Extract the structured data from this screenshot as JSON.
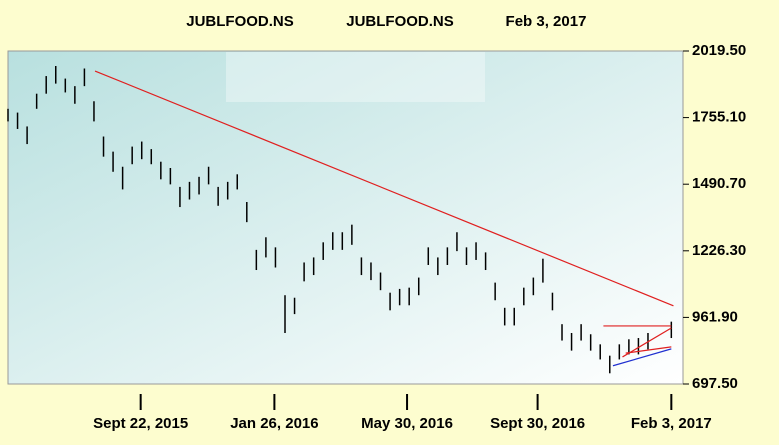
{
  "chart_data": {
    "type": "ohlc",
    "title": "JUBLFOOD.NS",
    "subtitle": "JUBLFOOD.NS",
    "date": "Feb 3, 2017",
    "color": "#000000",
    "x": [
      "2015-05-20",
      "2015-05-29",
      "2015-06-07",
      "2015-06-16",
      "2015-06-25",
      "2015-07-04",
      "2015-07-13",
      "2015-07-22",
      "2015-07-31",
      "2015-08-09",
      "2015-08-18",
      "2015-08-27",
      "2015-09-05",
      "2015-09-14",
      "2015-09-23",
      "2015-10-02",
      "2015-10-11",
      "2015-10-20",
      "2015-10-29",
      "2015-11-07",
      "2015-11-16",
      "2015-11-25",
      "2015-12-04",
      "2015-12-13",
      "2015-12-22",
      "2015-12-31",
      "2016-01-09",
      "2016-01-18",
      "2016-01-27",
      "2016-02-05",
      "2016-02-14",
      "2016-02-23",
      "2016-03-03",
      "2016-03-12",
      "2016-03-21",
      "2016-03-30",
      "2016-04-08",
      "2016-04-17",
      "2016-04-26",
      "2016-05-05",
      "2016-05-14",
      "2016-05-23",
      "2016-06-01",
      "2016-06-10",
      "2016-06-19",
      "2016-06-28",
      "2016-07-07",
      "2016-07-16",
      "2016-07-25",
      "2016-08-03",
      "2016-08-12",
      "2016-08-21",
      "2016-08-30",
      "2016-09-08",
      "2016-09-17",
      "2016-09-26",
      "2016-10-05",
      "2016-10-14",
      "2016-10-23",
      "2016-11-01",
      "2016-11-10",
      "2016-11-19",
      "2016-11-28",
      "2016-12-07",
      "2016-12-16",
      "2016-12-25",
      "2017-01-03",
      "2017-01-12",
      "2017-02-03"
    ],
    "high": [
      1790,
      1775,
      1720,
      1850,
      1920,
      1960,
      1910,
      1880,
      1950,
      1820,
      1680,
      1620,
      1560,
      1640,
      1660,
      1630,
      1580,
      1555,
      1480,
      1500,
      1520,
      1560,
      1480,
      1500,
      1530,
      1420,
      1230,
      1280,
      1240,
      1050,
      1040,
      1180,
      1200,
      1260,
      1300,
      1300,
      1330,
      1200,
      1180,
      1140,
      1060,
      1075,
      1080,
      1120,
      1240,
      1200,
      1240,
      1300,
      1240,
      1260,
      1220,
      1100,
      1000,
      1000,
      1080,
      1120,
      1195,
      1060,
      935,
      900,
      935,
      895,
      855,
      810,
      855,
      875,
      880,
      900,
      945
    ],
    "low": [
      1740,
      1710,
      1650,
      1790,
      1850,
      1890,
      1855,
      1810,
      1880,
      1740,
      1600,
      1540,
      1470,
      1570,
      1590,
      1570,
      1510,
      1490,
      1400,
      1430,
      1450,
      1490,
      1405,
      1430,
      1470,
      1340,
      1150,
      1200,
      1160,
      900,
      975,
      1105,
      1130,
      1190,
      1230,
      1230,
      1250,
      1130,
      1110,
      1070,
      990,
      1010,
      1010,
      1050,
      1170,
      1130,
      1170,
      1225,
      1170,
      1190,
      1150,
      1030,
      930,
      930,
      1010,
      1050,
      1100,
      990,
      870,
      830,
      870,
      830,
      795,
      740,
      795,
      815,
      815,
      835,
      880
    ],
    "trendlines": [
      {
        "color": "#e02020",
        "x": [
          "2015-08-10",
          "2017-02-05"
        ],
        "values": [
          1940,
          1008
        ]
      },
      {
        "color": "#e02020",
        "x": [
          "2016-12-01",
          "2017-02-03"
        ],
        "values": [
          928,
          928
        ]
      },
      {
        "color": "#e02020",
        "x": [
          "2016-12-19",
          "2017-02-03"
        ],
        "values": [
          805,
          920
        ]
      },
      {
        "color": "#e02020",
        "x": [
          "2016-12-22",
          "2017-02-03"
        ],
        "values": [
          820,
          845
        ]
      },
      {
        "color": "#2030d0",
        "x": [
          "2016-12-10",
          "2017-02-03"
        ],
        "values": [
          770,
          837
        ]
      }
    ],
    "xlim": [
      "2015-05-20",
      "2017-02-14"
    ],
    "xticks": [
      {
        "value": "2015-09-22",
        "label": "Sept 22, 2015"
      },
      {
        "value": "2016-01-26",
        "label": "Jan 26, 2016"
      },
      {
        "value": "2016-05-30",
        "label": "May 30, 2016"
      },
      {
        "value": "2016-09-30",
        "label": "Sept 30, 2016"
      },
      {
        "value": "2017-02-03",
        "label": "Feb 3, 2017"
      }
    ],
    "ylim": [
      697.5,
      2019.5
    ],
    "yticks": [
      {
        "value": 697.5,
        "label": "697.50"
      },
      {
        "value": 961.9,
        "label": "961.90"
      },
      {
        "value": 1226.3,
        "label": "1226.30"
      },
      {
        "value": 1490.7,
        "label": "1490.70"
      },
      {
        "value": 1755.1,
        "label": "1755.10"
      },
      {
        "value": 2019.5,
        "label": "2019.50"
      }
    ]
  }
}
